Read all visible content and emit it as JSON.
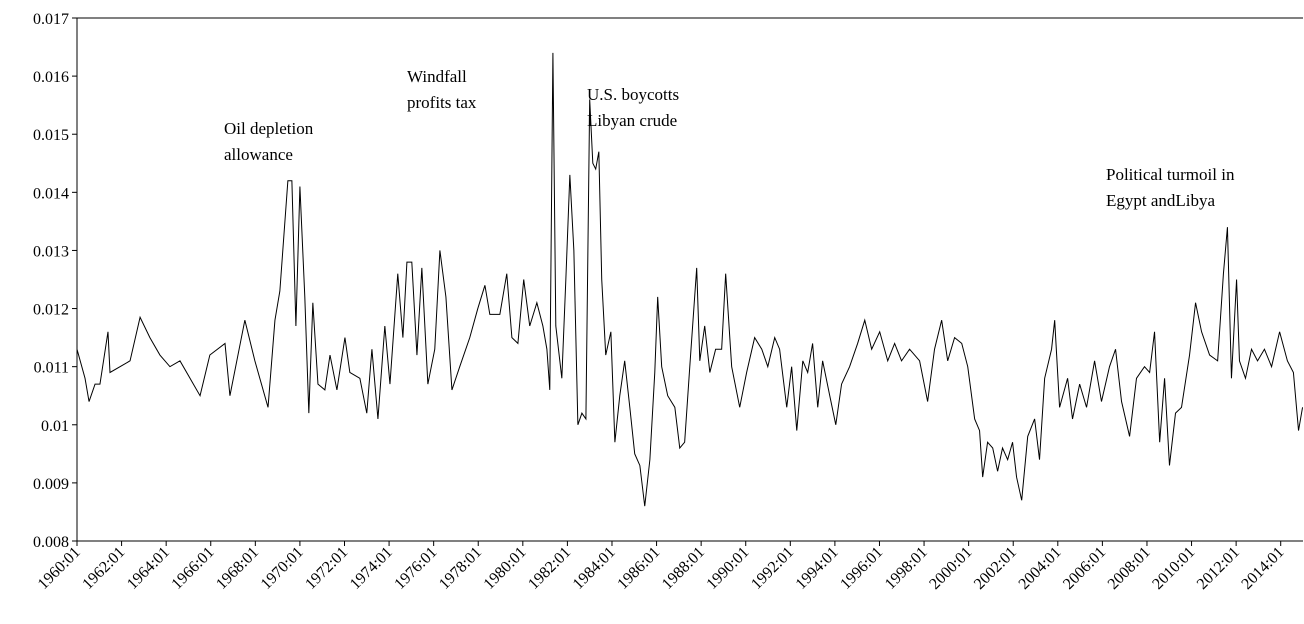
{
  "chart_data": {
    "type": "line",
    "color": "#000000",
    "xlim": [
      1960,
      2015
    ],
    "ylim": [
      0.008,
      0.017
    ],
    "yticks": [
      0.008,
      0.009,
      0.01,
      0.011,
      0.012,
      0.013,
      0.014,
      0.015,
      0.016,
      0.017
    ],
    "xticks": [
      {
        "value": 1960,
        "label": "1960:01"
      },
      {
        "value": 1962,
        "label": "1962:01"
      },
      {
        "value": 1964,
        "label": "1964:01"
      },
      {
        "value": 1966,
        "label": "1966:01"
      },
      {
        "value": 1968,
        "label": "1968:01"
      },
      {
        "value": 1970,
        "label": "1970:01"
      },
      {
        "value": 1972,
        "label": "1972:01"
      },
      {
        "value": 1974,
        "label": "1974:01"
      },
      {
        "value": 1976,
        "label": "1976:01"
      },
      {
        "value": 1978,
        "label": "1978:01"
      },
      {
        "value": 1980,
        "label": "1980:01"
      },
      {
        "value": 1982,
        "label": "1982:01"
      },
      {
        "value": 1984,
        "label": "1984:01"
      },
      {
        "value": 1986,
        "label": "1986:01"
      },
      {
        "value": 1988,
        "label": "1988:01"
      },
      {
        "value": 1990,
        "label": "1990:01"
      },
      {
        "value": 1992,
        "label": "1992:01"
      },
      {
        "value": 1994,
        "label": "1994:01"
      },
      {
        "value": 1996,
        "label": "1996:01"
      },
      {
        "value": 1998,
        "label": "1998:01"
      },
      {
        "value": 2000,
        "label": "2000:01"
      },
      {
        "value": 2002,
        "label": "2002:01"
      },
      {
        "value": 2004,
        "label": "2004:01"
      },
      {
        "value": 2006,
        "label": "2006:01"
      },
      {
        "value": 2008,
        "label": "2008:01"
      },
      {
        "value": 2010,
        "label": "2010:01"
      },
      {
        "value": 2012,
        "label": "2012:01"
      },
      {
        "value": 2014,
        "label": "2014:01"
      }
    ],
    "annotations": [
      [
        "Oil depletion",
        "allowance"
      ],
      [
        "Windfall",
        "profits tax"
      ],
      [
        "U.S. boycotts",
        "Libyan crude"
      ],
      [
        "Political turmoil in",
        "Egypt andLibya"
      ]
    ],
    "x": [
      1960.0,
      1960.36,
      1960.54,
      1960.81,
      1961.03,
      1961.39,
      1961.48,
      1962.38,
      1962.83,
      1963.27,
      1963.72,
      1964.17,
      1964.62,
      1965.07,
      1965.52,
      1965.96,
      1966.64,
      1966.86,
      1967.53,
      1967.98,
      1968.57,
      1968.88,
      1969.1,
      1969.46,
      1969.64,
      1969.82,
      1970.0,
      1970.22,
      1970.4,
      1970.58,
      1970.81,
      1971.12,
      1971.35,
      1971.66,
      1972.02,
      1972.24,
      1972.69,
      1973.0,
      1973.23,
      1973.5,
      1973.81,
      1974.04,
      1974.39,
      1974.62,
      1974.8,
      1975.02,
      1975.25,
      1975.47,
      1975.74,
      1976.05,
      1976.28,
      1976.55,
      1976.82,
      1977.17,
      1977.62,
      1977.98,
      1978.3,
      1978.52,
      1978.97,
      1979.28,
      1979.51,
      1979.78,
      1980.04,
      1980.31,
      1980.63,
      1980.9,
      1981.08,
      1981.21,
      1981.35,
      1981.48,
      1981.75,
      1981.93,
      1982.11,
      1982.29,
      1982.47,
      1982.65,
      1982.83,
      1983.0,
      1983.14,
      1983.27,
      1983.41,
      1983.54,
      1983.72,
      1983.95,
      1984.13,
      1984.35,
      1984.57,
      1984.8,
      1985.02,
      1985.25,
      1985.47,
      1985.7,
      1985.92,
      1986.05,
      1986.23,
      1986.5,
      1986.82,
      1987.04,
      1987.26,
      1987.49,
      1987.8,
      1987.94,
      1988.16,
      1988.39,
      1988.65,
      1988.92,
      1989.1,
      1989.37,
      1989.73,
      1990.04,
      1990.4,
      1990.72,
      1990.99,
      1991.3,
      1991.52,
      1991.84,
      1992.06,
      1992.29,
      1992.56,
      1992.78,
      1993.0,
      1993.23,
      1993.45,
      1993.77,
      1994.04,
      1994.3,
      1994.66,
      1995.02,
      1995.34,
      1995.65,
      1996.01,
      1996.37,
      1996.68,
      1996.99,
      1997.35,
      1997.8,
      1998.16,
      1998.47,
      1998.79,
      1999.06,
      1999.37,
      1999.69,
      1999.96,
      2000.27,
      2000.49,
      2000.63,
      2000.85,
      2001.08,
      2001.3,
      2001.52,
      2001.75,
      2001.97,
      2002.15,
      2002.38,
      2002.65,
      2002.96,
      2003.18,
      2003.41,
      2003.72,
      2003.86,
      2004.08,
      2004.44,
      2004.66,
      2004.98,
      2005.29,
      2005.65,
      2005.96,
      2006.32,
      2006.59,
      2006.86,
      2007.22,
      2007.53,
      2007.89,
      2008.12,
      2008.34,
      2008.57,
      2008.79,
      2009.01,
      2009.28,
      2009.55,
      2009.91,
      2010.18,
      2010.45,
      2010.81,
      2011.17,
      2011.43,
      2011.61,
      2011.79,
      2012.02,
      2012.15,
      2012.42,
      2012.69,
      2012.96,
      2013.27,
      2013.59,
      2013.95,
      2014.3,
      2014.57,
      2014.8,
      2014.98
    ],
    "values": [
      0.0113,
      0.0108,
      0.0104,
      0.0107,
      0.0107,
      0.0116,
      0.0109,
      0.0111,
      0.01185,
      0.0115,
      0.0112,
      0.011,
      0.0111,
      0.0108,
      0.0105,
      0.0112,
      0.0114,
      0.0105,
      0.0118,
      0.0111,
      0.0103,
      0.0118,
      0.0123,
      0.0142,
      0.0142,
      0.0117,
      0.0141,
      0.0122,
      0.0102,
      0.0121,
      0.0107,
      0.0106,
      0.0112,
      0.0106,
      0.0115,
      0.0109,
      0.0108,
      0.0102,
      0.0113,
      0.0101,
      0.0117,
      0.0107,
      0.0126,
      0.0115,
      0.0128,
      0.0128,
      0.0112,
      0.0127,
      0.0107,
      0.0113,
      0.013,
      0.0122,
      0.0106,
      0.011,
      0.0115,
      0.012,
      0.0124,
      0.0119,
      0.0119,
      0.0126,
      0.0115,
      0.0114,
      0.0125,
      0.0117,
      0.0121,
      0.0117,
      0.0113,
      0.0106,
      0.0164,
      0.0117,
      0.0108,
      0.0125,
      0.0143,
      0.013,
      0.01,
      0.0102,
      0.0101,
      0.0156,
      0.0145,
      0.0144,
      0.0147,
      0.0125,
      0.0112,
      0.0116,
      0.0097,
      0.0105,
      0.0111,
      0.0103,
      0.0095,
      0.0093,
      0.0086,
      0.0094,
      0.0109,
      0.0122,
      0.011,
      0.0105,
      0.0103,
      0.0096,
      0.0097,
      0.011,
      0.0127,
      0.0111,
      0.0117,
      0.0109,
      0.0113,
      0.0113,
      0.0126,
      0.011,
      0.0103,
      0.0109,
      0.0115,
      0.0113,
      0.011,
      0.0115,
      0.0113,
      0.0103,
      0.011,
      0.0099,
      0.0111,
      0.0109,
      0.0114,
      0.0103,
      0.0111,
      0.0105,
      0.01,
      0.0107,
      0.011,
      0.0114,
      0.0118,
      0.0113,
      0.0116,
      0.0111,
      0.0114,
      0.0111,
      0.0113,
      0.0111,
      0.0104,
      0.0113,
      0.0118,
      0.0111,
      0.0115,
      0.0114,
      0.011,
      0.0101,
      0.0099,
      0.0091,
      0.0097,
      0.0096,
      0.0092,
      0.0096,
      0.0094,
      0.0097,
      0.0091,
      0.0087,
      0.0098,
      0.0101,
      0.0094,
      0.0108,
      0.0113,
      0.0118,
      0.0103,
      0.0108,
      0.0101,
      0.0107,
      0.0103,
      0.0111,
      0.0104,
      0.011,
      0.0113,
      0.0104,
      0.0098,
      0.0108,
      0.011,
      0.0109,
      0.0116,
      0.0097,
      0.0108,
      0.0093,
      0.0102,
      0.0103,
      0.0112,
      0.0121,
      0.0116,
      0.0112,
      0.0111,
      0.0126,
      0.0134,
      0.0108,
      0.0125,
      0.0111,
      0.0108,
      0.0113,
      0.0111,
      0.0113,
      0.011,
      0.0116,
      0.0111,
      0.0109,
      0.0099,
      0.0103
    ]
  }
}
